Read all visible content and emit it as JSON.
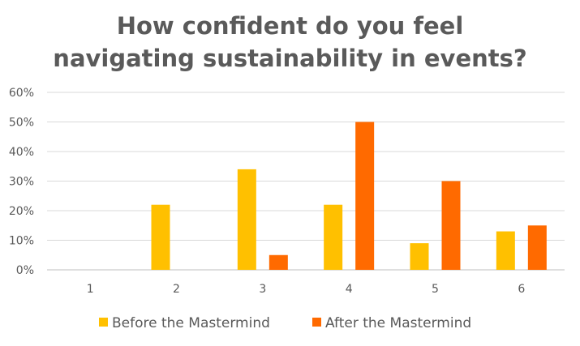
{
  "chart_data": {
    "type": "bar",
    "title_lines": [
      "How confident do you feel",
      "navigating sustainability in events?"
    ],
    "categories": [
      "1",
      "2",
      "3",
      "4",
      "5",
      "6"
    ],
    "series": [
      {
        "name": "Before the Mastermind",
        "color": "#FFC000",
        "values": [
          0,
          22,
          34,
          22,
          9,
          13
        ]
      },
      {
        "name": "After the Mastermind",
        "color": "#FF6A00",
        "values": [
          0,
          0,
          5,
          50,
          30,
          15
        ]
      }
    ],
    "yticks": [
      "0%",
      "10%",
      "20%",
      "30%",
      "40%",
      "50%",
      "60%"
    ],
    "ylim": [
      0,
      60
    ],
    "unit": "%",
    "grid": true,
    "legend": "bottom"
  }
}
